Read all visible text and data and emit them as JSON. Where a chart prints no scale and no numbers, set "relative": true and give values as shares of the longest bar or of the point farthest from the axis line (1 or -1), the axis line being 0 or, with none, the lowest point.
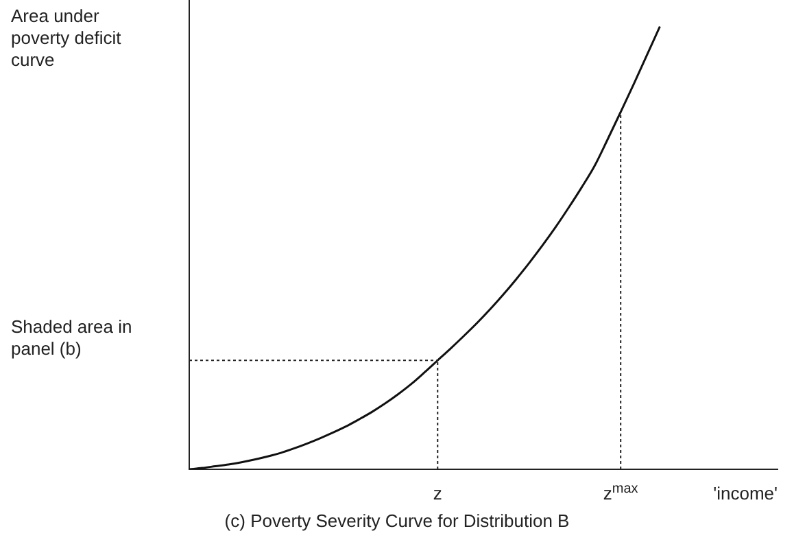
{
  "chart_data": {
    "type": "line",
    "title": "(c) Poverty Severity Curve for Distribution B",
    "ylabel": "Area under poverty deficit curve",
    "xlabel": "'income'",
    "relative": true,
    "color": "#111111",
    "marker": "none",
    "line_style": "solid",
    "grid": false,
    "legend": false,
    "categories": [
      null,
      null,
      null,
      null,
      null,
      null,
      null,
      null,
      null,
      null,
      null,
      null,
      null,
      null,
      null,
      null,
      null,
      null,
      null,
      "z",
      null,
      null,
      null,
      null,
      null,
      null,
      null,
      null,
      null,
      null,
      null,
      null,
      null,
      "z$^{max}$",
      null,
      null,
      null,
      null,
      null,
      null,
      null,
      null,
      null,
      null,
      null,
      null
    ],
    "values": [
      0,
      0.003,
      0.007,
      0.011,
      0.016,
      0.022,
      0.029,
      0.037,
      0.047,
      0.058,
      0.07,
      0.083,
      0.097,
      0.113,
      0.13,
      0.149,
      0.17,
      0.193,
      0.219,
      0.246,
      0.273,
      0.301,
      0.33,
      0.361,
      0.394,
      0.429,
      0.466,
      0.505,
      0.546,
      0.59,
      0.636,
      0.685,
      0.745,
      0.807,
      0.87,
      0.935,
      1,
      null,
      null,
      null,
      null,
      null,
      null,
      null,
      null,
      null
    ],
    "ref_lines": [
      {
        "axis": "y",
        "value": 0.246,
        "label": "Shaded area in panel (b)",
        "line_style": "dotted"
      },
      {
        "axis": "x",
        "value": "z",
        "line_style": "dotted"
      },
      {
        "axis": "x",
        "value": "z$^{max}$",
        "line_style": "dotted"
      }
    ]
  }
}
